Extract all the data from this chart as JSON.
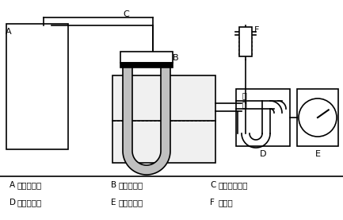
{
  "labels": {
    "A": "試料採取袋",
    "B": "試料濃縮管",
    "C": "ふっ素樹脂管",
    "D": "吸引ポンプ",
    "E": "ガスメータ",
    "F": "注射器"
  },
  "bg_color": "#ffffff",
  "line_color": "#000000",
  "shade_color": "#c0c0c0",
  "lw": 1.2
}
